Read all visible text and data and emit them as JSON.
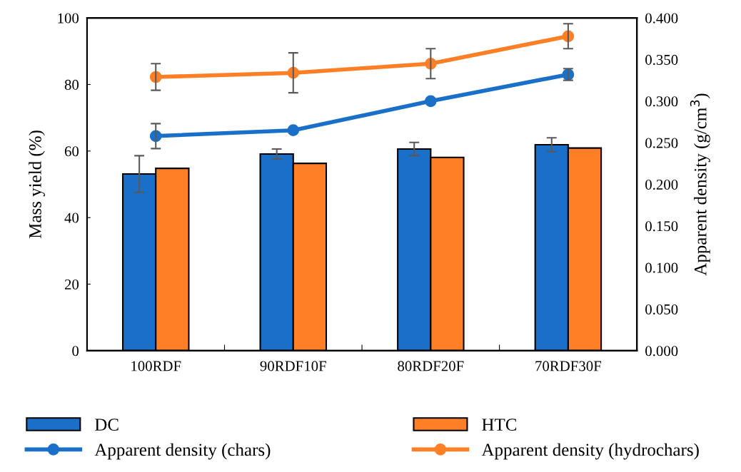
{
  "chart_data": {
    "type": "bar",
    "categories": [
      "100RDF",
      "90RDF10F",
      "80RDF20F",
      "70RDF30F"
    ],
    "ylabel": "Mass yield (%)",
    "y2label": "Apparent density (g/cm$^{3}$)",
    "ylim": [
      0,
      100
    ],
    "yticks": [
      0,
      20,
      40,
      60,
      80,
      100
    ],
    "y2lim": [
      0,
      0.4
    ],
    "y2ticks": [
      {
        "value": 0,
        "label": "0.000"
      },
      {
        "value": 0.05,
        "label": "0.050"
      },
      {
        "value": 0.1,
        "label": "0.100"
      },
      {
        "value": 0.15,
        "label": "0.150"
      },
      {
        "value": 0.2,
        "label": "0.200"
      },
      {
        "value": 0.25,
        "label": "0.250"
      },
      {
        "value": 0.3,
        "label": "0.300"
      },
      {
        "value": 0.35,
        "label": "0.350"
      },
      {
        "value": 0.4,
        "label": "0.400"
      }
    ],
    "grid": false,
    "legend": "bottom",
    "marker": "circle",
    "series": [
      {
        "name": "DC",
        "color": "#1a70c8",
        "values": [
          53.1,
          59.1,
          60.6,
          61.9
        ],
        "errors": [
          5.5,
          1.5,
          2.0,
          2.1
        ]
      },
      {
        "name": "HTC",
        "color": "#ff7f27",
        "values": [
          54.8,
          56.3,
          58.1,
          60.9
        ]
      },
      {
        "name": "Apparent density (chars)",
        "type": "line",
        "axis": "y2",
        "color": "#1a70c8",
        "values": [
          0.258,
          0.265,
          0.3,
          0.332
        ],
        "errors": [
          0.015,
          null,
          null,
          0.007
        ]
      },
      {
        "name": "Apparent density (hydrochars)",
        "type": "line",
        "axis": "y2",
        "color": "#ff7f27",
        "values": [
          0.329,
          0.334,
          0.345,
          0.378
        ],
        "errors": [
          0.016,
          0.024,
          0.018,
          0.015
        ]
      }
    ]
  }
}
